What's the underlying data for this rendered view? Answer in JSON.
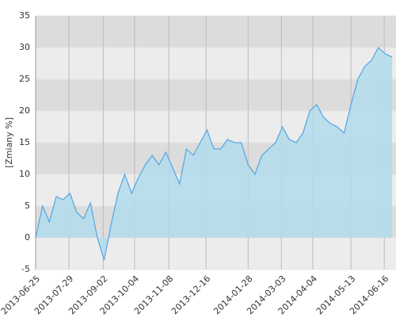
{
  "chart_data": {
    "type": "area",
    "y_label": "[Zmiany %]",
    "x": [
      "2013-06-25",
      "2013-07-02",
      "2013-07-09",
      "2013-07-16",
      "2013-07-23",
      "2013-07-30",
      "2013-08-06",
      "2013-08-13",
      "2013-08-20",
      "2013-08-27",
      "2013-09-03",
      "2013-09-10",
      "2013-09-17",
      "2013-09-24",
      "2013-10-01",
      "2013-10-08",
      "2013-10-15",
      "2013-10-22",
      "2013-10-29",
      "2013-11-05",
      "2013-11-12",
      "2013-11-19",
      "2013-11-26",
      "2013-12-03",
      "2013-12-10",
      "2013-12-17",
      "2013-12-24",
      "2013-12-31",
      "2014-01-07",
      "2014-01-14",
      "2014-01-21",
      "2014-01-28",
      "2014-02-04",
      "2014-02-11",
      "2014-02-18",
      "2014-02-25",
      "2014-03-04",
      "2014-03-11",
      "2014-03-18",
      "2014-03-25",
      "2014-04-01",
      "2014-04-08",
      "2014-04-15",
      "2014-04-22",
      "2014-04-29",
      "2014-05-06",
      "2014-05-13",
      "2014-05-20",
      "2014-05-27",
      "2014-06-03",
      "2014-06-10",
      "2014-06-17",
      "2014-06-24"
    ],
    "series": [
      {
        "color": "#5aa9e6",
        "fill": "#b3dcec",
        "values": [
          0,
          5,
          2.5,
          6.5,
          6,
          7,
          4,
          3,
          5.5,
          0,
          -3.5,
          2,
          7,
          10,
          7,
          9.5,
          11.5,
          13,
          11.5,
          13.5,
          11,
          8.5,
          14,
          13,
          15,
          17,
          14,
          14,
          15.5,
          15,
          15,
          11.5,
          10,
          13,
          14,
          15,
          17.5,
          15.5,
          15,
          16.5,
          20,
          21,
          19,
          18,
          17.5,
          16.5,
          21,
          25,
          27,
          28,
          30,
          29,
          28.5
        ]
      }
    ],
    "xlim": [
      "2013-06-25",
      "2014-06-28"
    ],
    "xticks": [
      "2013-06-25",
      "2013-07-29",
      "2013-09-02",
      "2013-10-04",
      "2013-11-08",
      "2013-12-16",
      "2014-01-28",
      "2014-03-03",
      "2014-04-04",
      "2014-05-13",
      "2014-06-16"
    ],
    "ylim": [
      -5,
      35
    ],
    "yticks": [
      -5,
      0,
      5,
      10,
      15,
      20,
      25,
      30,
      35
    ],
    "grid": true
  }
}
